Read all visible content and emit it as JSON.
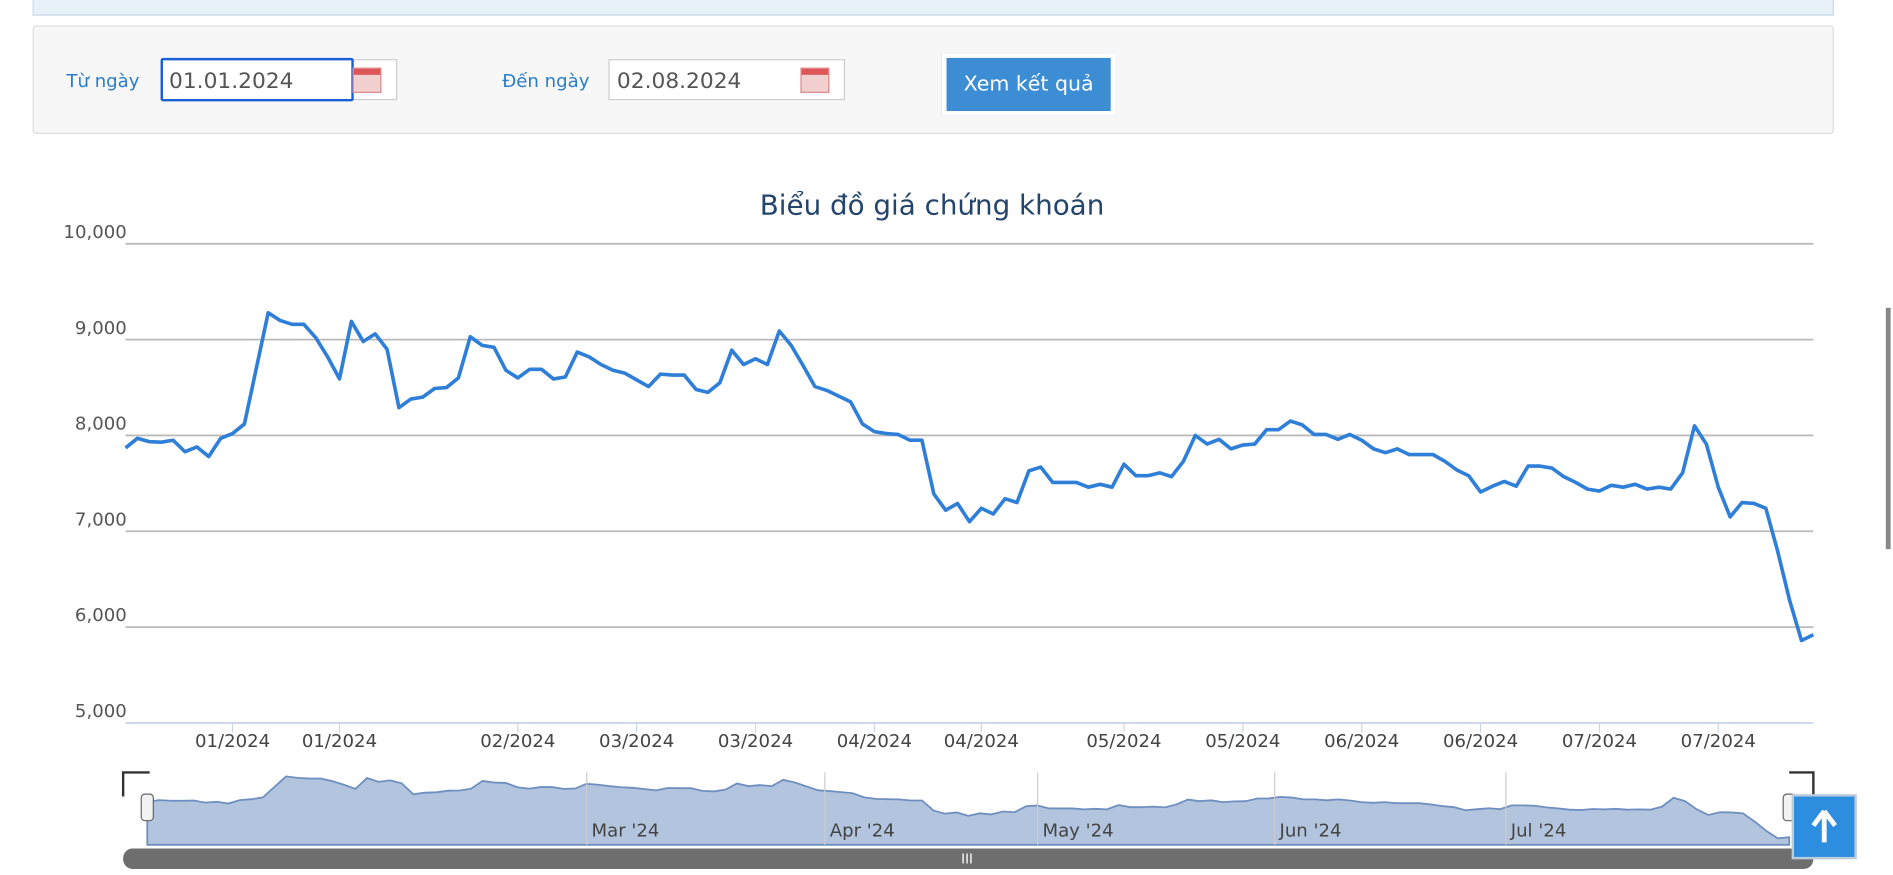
{
  "form": {
    "from_label": "Từ ngày",
    "from_value": "01.01.2024",
    "to_label": "Đến ngày",
    "to_value": "02.08.2024",
    "button": "Xem kết quả"
  },
  "chart_data": {
    "type": "line",
    "title": "Biểu đồ giá chứng khoán",
    "series": [
      {
        "color": "#2f7fd8",
        "values": [
          7870,
          7970,
          7935,
          7930,
          7950,
          7830,
          7880,
          7780,
          7970,
          8020,
          8120,
          8700,
          9280,
          9200,
          9160,
          9160,
          9020,
          8820,
          8590,
          9190,
          8980,
          9060,
          8900,
          8290,
          8380,
          8400,
          8490,
          8500,
          8600,
          9030,
          8940,
          8920,
          8680,
          8600,
          8690,
          8690,
          8590,
          8610,
          8870,
          8820,
          8740,
          8680,
          8650,
          8580,
          8510,
          8640,
          8630,
          8630,
          8480,
          8450,
          8550,
          8890,
          8740,
          8800,
          8740,
          9090,
          8940,
          8730,
          8510,
          8470,
          8410,
          8350,
          8120,
          8040,
          8020,
          8010,
          7950,
          7950,
          7390,
          7220,
          7290,
          7100,
          7240,
          7180,
          7340,
          7300,
          7630,
          7670,
          7510,
          7510,
          7510,
          7460,
          7490,
          7460,
          7700,
          7580,
          7580,
          7610,
          7570,
          7730,
          8000,
          7910,
          7960,
          7860,
          7900,
          7910,
          8060,
          8060,
          8150,
          8110,
          8010,
          8010,
          7960,
          8010,
          7950,
          7860,
          7820,
          7860,
          7800,
          7800,
          7800,
          7730,
          7640,
          7580,
          7410,
          7470,
          7520,
          7470,
          7680,
          7680,
          7660,
          7570,
          7510,
          7440,
          7420,
          7480,
          7460,
          7490,
          7440,
          7460,
          7440,
          7610,
          8100,
          7910,
          7460,
          7150,
          7300,
          7290,
          7240,
          6790,
          6280,
          5860,
          5920
        ]
      }
    ],
    "xlim": [
      0,
      142
    ],
    "xticks": [
      {
        "value": 9,
        "label": "01/2024"
      },
      {
        "value": 18,
        "label": "01/2024"
      },
      {
        "value": 33,
        "label": "02/2024"
      },
      {
        "value": 43,
        "label": "03/2024"
      },
      {
        "value": 53,
        "label": "03/2024"
      },
      {
        "value": 63,
        "label": "04/2024"
      },
      {
        "value": 72,
        "label": "04/2024"
      },
      {
        "value": 84,
        "label": "05/2024"
      },
      {
        "value": 94,
        "label": "05/2024"
      },
      {
        "value": 104,
        "label": "06/2024"
      },
      {
        "value": 114,
        "label": "06/2024"
      },
      {
        "value": 124,
        "label": "07/2024"
      },
      {
        "value": 134,
        "label": "07/2024"
      }
    ],
    "ylim": [
      5000,
      10000
    ],
    "yticks": [
      {
        "value": 5000,
        "label": "5,000"
      },
      {
        "value": 6000,
        "label": "6,000"
      },
      {
        "value": 7000,
        "label": "7,000"
      },
      {
        "value": 8000,
        "label": "8,000"
      },
      {
        "value": 9000,
        "label": "9,000"
      },
      {
        "value": 10000,
        "label": "10,000"
      }
    ],
    "grid": true,
    "navigator": {
      "ylim": [
        5500,
        9500
      ],
      "fill": "#b3c5de",
      "color": "#6f8fc0",
      "xticks": [
        {
          "value": 38,
          "label": "Mar '24"
        },
        {
          "value": 58.6,
          "label": "Apr '24"
        },
        {
          "value": 77,
          "label": "May '24"
        },
        {
          "value": 97.5,
          "label": "Jun '24"
        },
        {
          "value": 117.5,
          "label": "Jul '24"
        }
      ]
    }
  }
}
